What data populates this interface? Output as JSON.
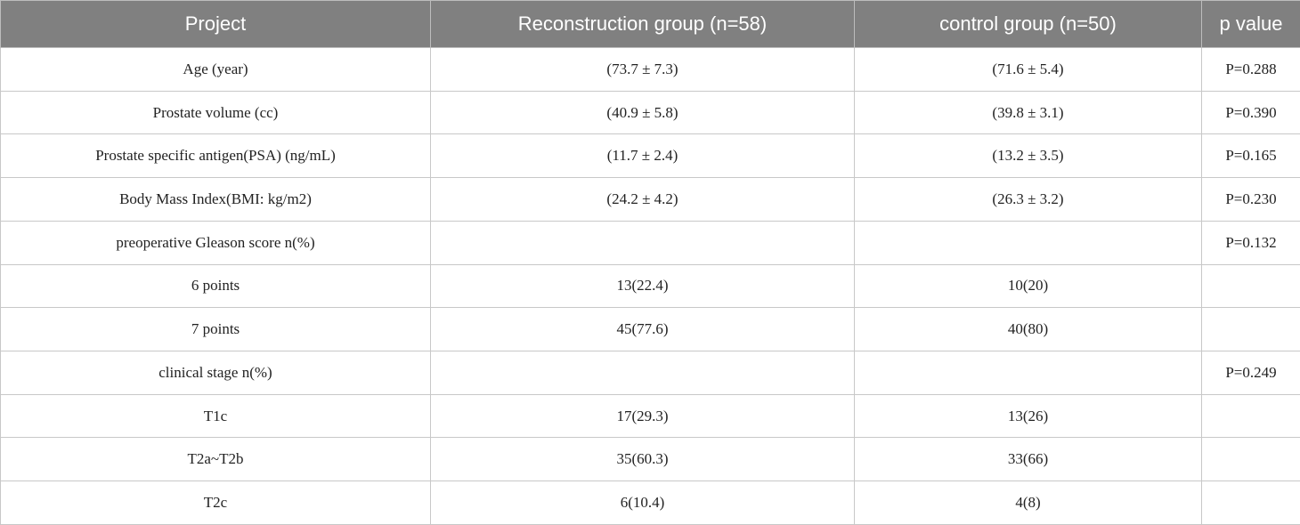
{
  "table": {
    "header": [
      "Project",
      "Reconstruction group (n=58)",
      "control group (n=50)",
      "p value"
    ],
    "rows": [
      [
        "Age (year)",
        "(73.7 ± 7.3)",
        "(71.6 ± 5.4)",
        "P=0.288"
      ],
      [
        "Prostate volume (cc)",
        "(40.9 ± 5.8)",
        "(39.8 ± 3.1)",
        "P=0.390"
      ],
      [
        "Prostate specific antigen(PSA) (ng/mL)",
        "(11.7 ± 2.4)",
        "(13.2 ± 3.5)",
        "P=0.165"
      ],
      [
        "Body Mass Index(BMI: kg/m2)",
        "(24.2 ± 4.2)",
        "(26.3 ± 3.2)",
        "P=0.230"
      ],
      [
        "preoperative Gleason score n(%)",
        null,
        null,
        "P=0.132"
      ],
      [
        "6 points",
        "13(22.4)",
        "10(20)",
        null
      ],
      [
        "7 points",
        "45(77.6)",
        "40(80)",
        null
      ],
      [
        "clinical stage n(%)",
        null,
        null,
        "P=0.249"
      ],
      [
        "T1c",
        "17(29.3)",
        "13(26)",
        null
      ],
      [
        "T2a~T2b",
        "35(60.3)",
        "33(66)",
        null
      ],
      [
        "T2c",
        "6(10.4)",
        "4(8)",
        null
      ]
    ]
  }
}
